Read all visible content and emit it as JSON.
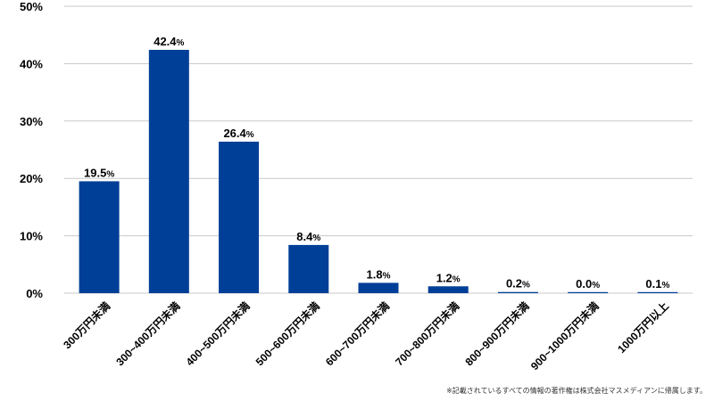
{
  "chart_data": {
    "type": "bar",
    "categories": [
      "300万円未満",
      "300~400万円未満",
      "400~500万円未満",
      "500~600万円未満",
      "600~700万円未満",
      "700~800万円未満",
      "800~900万円未満",
      "900~1000万円未満",
      "1000万円以上"
    ],
    "values": [
      19.5,
      42.4,
      26.4,
      8.4,
      1.8,
      1.2,
      0.2,
      0.0,
      0.1
    ],
    "value_labels": [
      "19.5",
      "42.4",
      "26.4",
      "8.4",
      "1.8",
      "1.2",
      "0.2",
      "0.0",
      "0.1"
    ],
    "value_suffix": "%",
    "ylim": [
      0,
      50
    ],
    "yticks": [
      0,
      10,
      20,
      30,
      40,
      50
    ],
    "ytick_labels": [
      "0%",
      "10%",
      "20%",
      "30%",
      "40%",
      "50%"
    ],
    "grid": true,
    "colors": {
      "bar": "#003f98",
      "grid": "#c8c8c8",
      "text": "#000000"
    }
  },
  "footnote": "※記載されているすべての情報の著作権は株式会社マスメディアンに帰属します。"
}
